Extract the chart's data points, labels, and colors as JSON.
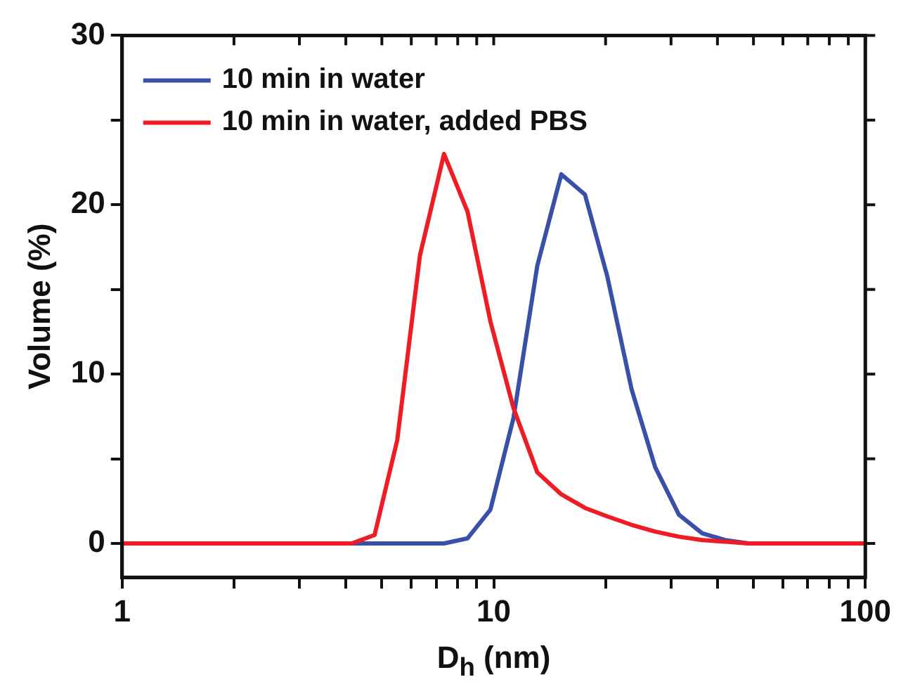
{
  "chart_data": {
    "type": "line",
    "xlabel": "D$_{h}$ (nm)",
    "ylabel": "Volume (%)",
    "log": "x",
    "xlim": [
      1,
      100
    ],
    "xticks": [
      1,
      {
        "value": 2,
        "label": null
      },
      {
        "value": 3,
        "label": null
      },
      {
        "value": 4,
        "label": null
      },
      {
        "value": 5,
        "label": null
      },
      {
        "value": 6,
        "label": null
      },
      {
        "value": 7,
        "label": null
      },
      {
        "value": 8,
        "label": null
      },
      {
        "value": 9,
        "label": null
      },
      10,
      {
        "value": 20,
        "label": null
      },
      {
        "value": 30,
        "label": null
      },
      {
        "value": 40,
        "label": null
      },
      {
        "value": 50,
        "label": null
      },
      {
        "value": 60,
        "label": null
      },
      {
        "value": 70,
        "label": null
      },
      {
        "value": 80,
        "label": null
      },
      {
        "value": 90,
        "label": null
      },
      100
    ],
    "ylim": [
      -2,
      30
    ],
    "yticks": [
      0,
      {
        "value": 5,
        "label": null
      },
      10,
      {
        "value": 15,
        "label": null
      },
      20,
      {
        "value": 25,
        "label": null
      },
      30
    ],
    "grid": false,
    "legend": "top left",
    "marker": "none",
    "line_style": "solid",
    "series": [
      {
        "name": "10 min in water",
        "color": "#3a4fa8",
        "x": [
          1,
          7.35,
          8.5,
          9.8,
          11.3,
          13.1,
          15.2,
          17.6,
          20.2,
          23.5,
          27.2,
          31.5,
          36.4,
          42,
          48.5,
          100
        ],
        "values": [
          0,
          0,
          0.3,
          2.0,
          7.4,
          16.4,
          21.8,
          20.6,
          15.8,
          9.1,
          4.5,
          1.7,
          0.6,
          0.2,
          0,
          0
        ]
      },
      {
        "name": "10 min in water, added PBS",
        "color": "#ee1c25",
        "x": [
          1,
          4.15,
          4.78,
          5.5,
          6.33,
          7.35,
          8.5,
          9.8,
          11.3,
          13.1,
          15.2,
          17.6,
          20.2,
          23.5,
          27.2,
          31.5,
          36.4,
          42,
          48.5,
          100
        ],
        "values": [
          0,
          0,
          0.5,
          6.1,
          17.0,
          23.0,
          19.6,
          13.1,
          8.0,
          4.2,
          2.9,
          2.1,
          1.6,
          1.1,
          0.7,
          0.4,
          0.2,
          0.1,
          0,
          0
        ]
      }
    ]
  }
}
